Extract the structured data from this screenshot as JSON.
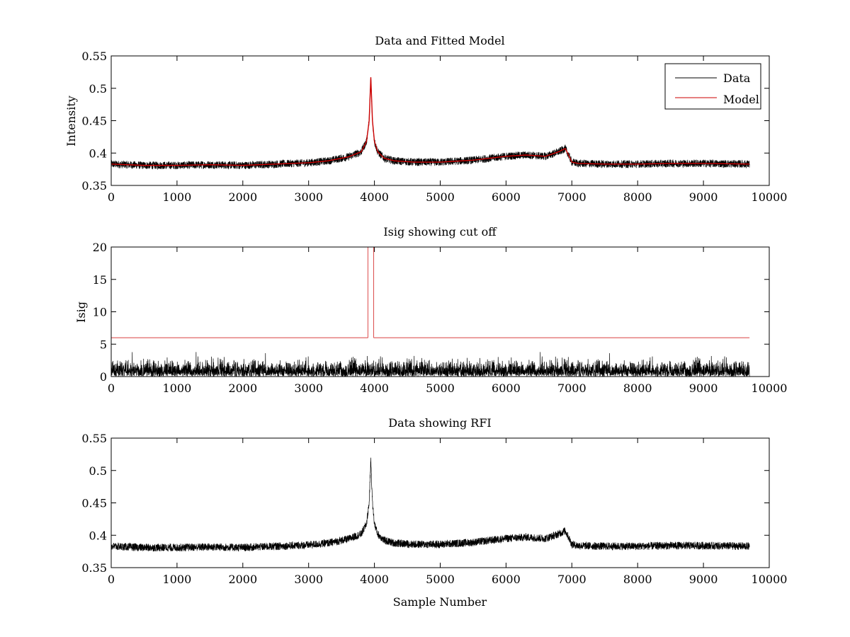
{
  "chart_data": [
    {
      "type": "line",
      "title": "Data and Fitted Model",
      "xlabel": "",
      "ylabel": "Intensity",
      "xlim": [
        0,
        10000
      ],
      "ylim": [
        0.35,
        0.55
      ],
      "xticks": [
        0,
        1000,
        2000,
        3000,
        4000,
        5000,
        6000,
        7000,
        8000,
        9000,
        10000
      ],
      "yticks": [
        0.35,
        0.4,
        0.45,
        0.5,
        0.55
      ],
      "xtick_labels": [
        "0",
        "1000",
        "2000",
        "3000",
        "4000",
        "5000",
        "6000",
        "7000",
        "8000",
        "9000",
        "10000"
      ],
      "ytick_labels": [
        "0.35",
        "0.4",
        "0.45",
        "0.5",
        "0.55"
      ],
      "legend": {
        "position": "top-right",
        "entries": [
          "Data",
          "Model"
        ]
      },
      "series": [
        {
          "name": "Data",
          "color": "#000000",
          "kind": "noisy",
          "noise_amplitude": 0.006,
          "x": [
            0,
            500,
            1000,
            1500,
            2000,
            2500,
            3000,
            3300,
            3600,
            3800,
            3880,
            3920,
            3945,
            3970,
            4000,
            4050,
            4150,
            4300,
            4600,
            5000,
            5500,
            6000,
            6300,
            6600,
            6800,
            6900,
            6950,
            7000,
            7100,
            7500,
            8000,
            8500,
            9000,
            9700
          ],
          "y": [
            0.383,
            0.381,
            0.381,
            0.382,
            0.381,
            0.383,
            0.385,
            0.388,
            0.394,
            0.402,
            0.418,
            0.45,
            0.517,
            0.45,
            0.418,
            0.402,
            0.392,
            0.388,
            0.386,
            0.386,
            0.389,
            0.395,
            0.397,
            0.395,
            0.402,
            0.407,
            0.397,
            0.386,
            0.384,
            0.383,
            0.383,
            0.384,
            0.384,
            0.383
          ]
        },
        {
          "name": "Model",
          "color": "#cc0000",
          "kind": "smooth",
          "x": [
            0,
            500,
            1000,
            1500,
            2000,
            2500,
            3000,
            3300,
            3600,
            3800,
            3880,
            3920,
            3945,
            3970,
            4000,
            4050,
            4150,
            4300,
            4600,
            5000,
            5500,
            6000,
            6300,
            6600,
            6800,
            6900,
            6950,
            7000,
            7100,
            7500,
            8000,
            8500,
            9000,
            9700
          ],
          "y": [
            0.383,
            0.381,
            0.381,
            0.382,
            0.381,
            0.383,
            0.385,
            0.388,
            0.394,
            0.402,
            0.418,
            0.45,
            0.517,
            0.45,
            0.418,
            0.402,
            0.392,
            0.388,
            0.386,
            0.386,
            0.389,
            0.395,
            0.397,
            0.395,
            0.402,
            0.407,
            0.397,
            0.386,
            0.384,
            0.383,
            0.383,
            0.384,
            0.384,
            0.383
          ]
        }
      ]
    },
    {
      "type": "line",
      "title": "Isig showing cut off",
      "xlabel": "",
      "ylabel": "Isig",
      "xlim": [
        0,
        10000
      ],
      "ylim": [
        0,
        20
      ],
      "xticks": [
        0,
        1000,
        2000,
        3000,
        4000,
        5000,
        6000,
        7000,
        8000,
        9000,
        10000
      ],
      "yticks": [
        0,
        5,
        10,
        15,
        20
      ],
      "xtick_labels": [
        "0",
        "1000",
        "2000",
        "3000",
        "4000",
        "5000",
        "6000",
        "7000",
        "8000",
        "9000",
        "10000"
      ],
      "ytick_labels": [
        "0",
        "5",
        "10",
        "15",
        "20"
      ],
      "series": [
        {
          "name": "Isig",
          "color": "#000000",
          "kind": "abs_noise",
          "x_start": 0,
          "x_end": 9700,
          "typical_max": 2.5,
          "peak_max": 3.8
        },
        {
          "name": "Cut off",
          "color": "#cc0000",
          "kind": "step",
          "x": [
            0,
            3900,
            3900,
            3990,
            3990,
            9700
          ],
          "y": [
            6,
            6,
            20,
            20,
            6,
            6
          ]
        }
      ]
    },
    {
      "type": "line",
      "title": "Data showing RFI",
      "xlabel": "Sample Number",
      "ylabel": "",
      "xlim": [
        0,
        10000
      ],
      "ylim": [
        0.35,
        0.55
      ],
      "xticks": [
        0,
        1000,
        2000,
        3000,
        4000,
        5000,
        6000,
        7000,
        8000,
        9000,
        10000
      ],
      "yticks": [
        0.35,
        0.4,
        0.45,
        0.5,
        0.55
      ],
      "xtick_labels": [
        "0",
        "1000",
        "2000",
        "3000",
        "4000",
        "5000",
        "6000",
        "7000",
        "8000",
        "9000",
        "10000"
      ],
      "ytick_labels": [
        "0.35",
        "0.4",
        "0.45",
        "0.5",
        "0.55"
      ],
      "series": [
        {
          "name": "Data",
          "color": "#000000",
          "kind": "noisy",
          "noise_amplitude": 0.006,
          "x": [
            0,
            500,
            1000,
            1500,
            2000,
            2500,
            3000,
            3300,
            3600,
            3800,
            3880,
            3920,
            3945,
            3970,
            4000,
            4050,
            4150,
            4300,
            4600,
            5000,
            5500,
            6000,
            6300,
            6600,
            6800,
            6900,
            6950,
            7000,
            7100,
            7500,
            8000,
            8500,
            9000,
            9700
          ],
          "y": [
            0.383,
            0.381,
            0.381,
            0.382,
            0.381,
            0.383,
            0.385,
            0.388,
            0.394,
            0.402,
            0.418,
            0.45,
            0.517,
            0.45,
            0.418,
            0.402,
            0.392,
            0.388,
            0.386,
            0.386,
            0.389,
            0.395,
            0.397,
            0.395,
            0.402,
            0.407,
            0.397,
            0.386,
            0.384,
            0.383,
            0.383,
            0.384,
            0.384,
            0.383
          ]
        }
      ]
    }
  ]
}
